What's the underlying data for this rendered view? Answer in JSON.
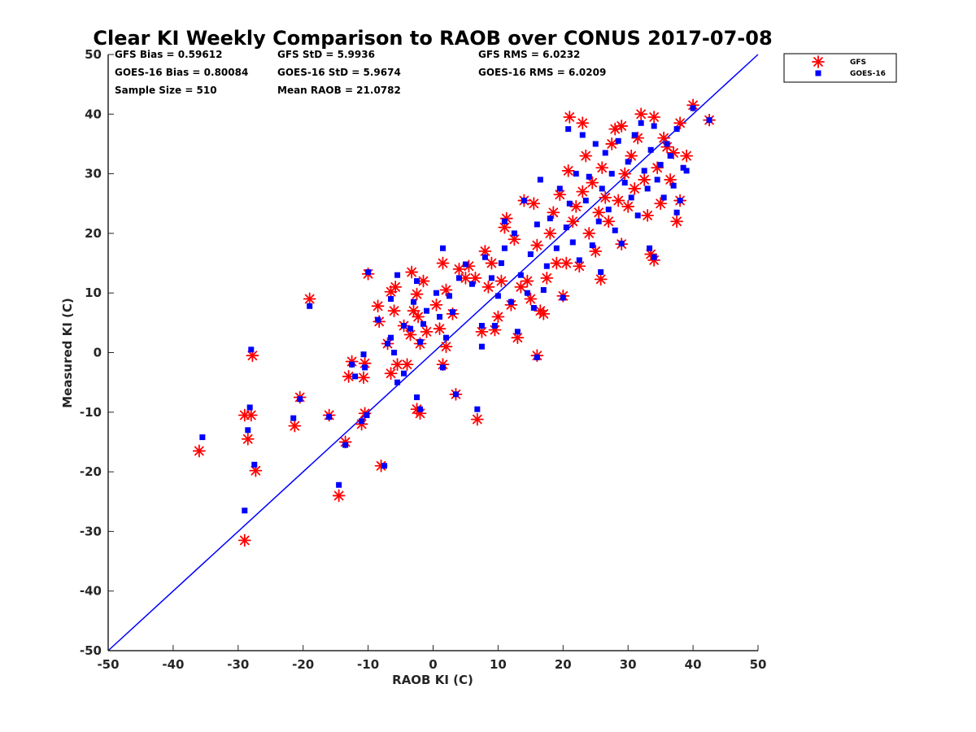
{
  "chart_data": {
    "type": "scatter",
    "title": "Clear KI Weekly Comparison to RAOB over CONUS 2017-07-08",
    "xlabel": "RAOB KI (C)",
    "ylabel": "Measured KI (C)",
    "xlim": [
      -50,
      50
    ],
    "ylim": [
      -50,
      50
    ],
    "xticks": [
      "-50",
      "-40",
      "-30",
      "-20",
      "-10",
      "0",
      "10",
      "20",
      "30",
      "40",
      "50"
    ],
    "yticks": [
      "-50",
      "-40",
      "-30",
      "-20",
      "-10",
      "0",
      "10",
      "20",
      "30",
      "40",
      "50"
    ],
    "stats": {
      "gfs_bias": "GFS Bias = 0.59612",
      "goes_bias": "GOES-16 Bias = 0.80084",
      "sample_size": "Sample Size = 510",
      "gfs_std": "GFS StD = 5.9936",
      "goes_std": "GOES-16 StD = 5.9674",
      "mean_raob": "Mean RAOB = 21.0782",
      "gfs_rms": "GFS RMS = 6.0232",
      "goes_rms": "GOES-16 RMS = 6.0209"
    },
    "legend": {
      "position": "top-right, outside axes",
      "entries": [
        "GFS",
        "GOES-16"
      ]
    },
    "reference_line": {
      "type": "one-to-one",
      "from": [
        -50,
        -50
      ],
      "to": [
        50,
        50
      ],
      "color": "#0000ff"
    },
    "series": [
      {
        "name": "GFS",
        "marker": "asterisk",
        "color": "#ff0000",
        "points": [
          [
            -36,
            -16.5
          ],
          [
            -29,
            -31.5
          ],
          [
            -29,
            -10.5
          ],
          [
            -28.5,
            -14.5
          ],
          [
            -28,
            -10.5
          ],
          [
            -27.8,
            -0.5
          ],
          [
            -27.3,
            -19.8
          ],
          [
            -21.3,
            -12.3
          ],
          [
            -20.5,
            -7.5
          ],
          [
            -19,
            9
          ],
          [
            -16,
            -10.5
          ],
          [
            -14.5,
            -24
          ],
          [
            -13.5,
            -15
          ],
          [
            -13,
            -4
          ],
          [
            -12.5,
            -1.5
          ],
          [
            -11,
            -12
          ],
          [
            -10.7,
            -4.2
          ],
          [
            -10.5,
            -1.8
          ],
          [
            -10.5,
            -10.2
          ],
          [
            -10,
            13.2
          ],
          [
            -8.5,
            7.8
          ],
          [
            -8.3,
            5.2
          ],
          [
            -8,
            -19
          ],
          [
            -7,
            1.5
          ],
          [
            -6.5,
            -3.5
          ],
          [
            -6.5,
            10.2
          ],
          [
            -6,
            7
          ],
          [
            -5.8,
            11
          ],
          [
            -5.5,
            -2
          ],
          [
            -4.5,
            4.5
          ],
          [
            -4,
            -2
          ],
          [
            -3.5,
            3
          ],
          [
            -3.3,
            13.5
          ],
          [
            -3,
            7
          ],
          [
            -2.5,
            9.8
          ],
          [
            -2.3,
            6
          ],
          [
            -2.5,
            -9.5
          ],
          [
            -2,
            1.5
          ],
          [
            -2,
            -10.2
          ],
          [
            -1.5,
            12
          ],
          [
            -1,
            3.5
          ],
          [
            0.5,
            8
          ],
          [
            1,
            4
          ],
          [
            1.5,
            -2
          ],
          [
            1.5,
            15
          ],
          [
            2,
            1
          ],
          [
            2,
            10.5
          ],
          [
            3,
            6.5
          ],
          [
            3.5,
            -7
          ],
          [
            4,
            14
          ],
          [
            5,
            12.5
          ],
          [
            5.5,
            14.5
          ],
          [
            6.5,
            12.5
          ],
          [
            6.8,
            -11.2
          ],
          [
            7.5,
            3.5
          ],
          [
            8,
            17
          ],
          [
            8.5,
            11
          ],
          [
            9,
            15
          ],
          [
            9.5,
            3.8
          ],
          [
            10,
            6
          ],
          [
            10.5,
            12
          ],
          [
            11,
            21
          ],
          [
            11.3,
            22.5
          ],
          [
            12,
            8
          ],
          [
            12.5,
            19
          ],
          [
            13,
            2.5
          ],
          [
            13.5,
            11
          ],
          [
            14,
            25.5
          ],
          [
            14.5,
            12
          ],
          [
            15,
            9
          ],
          [
            15.5,
            25
          ],
          [
            16,
            -0.5
          ],
          [
            16,
            18
          ],
          [
            16.5,
            7
          ],
          [
            17,
            6.5
          ],
          [
            17.5,
            12.5
          ],
          [
            18,
            20
          ],
          [
            18.5,
            23.5
          ],
          [
            19,
            15
          ],
          [
            19.5,
            26.5
          ],
          [
            20,
            9.5
          ],
          [
            20.5,
            15
          ],
          [
            20.8,
            30.5
          ],
          [
            21,
            39.5
          ],
          [
            21.5,
            22
          ],
          [
            22,
            24.5
          ],
          [
            22.5,
            14.5
          ],
          [
            23,
            38.5
          ],
          [
            23,
            27
          ],
          [
            23.5,
            33
          ],
          [
            24,
            20
          ],
          [
            24.5,
            28.5
          ],
          [
            25,
            17
          ],
          [
            25.5,
            23.5
          ],
          [
            25.8,
            12.3
          ],
          [
            26,
            31
          ],
          [
            26.5,
            26
          ],
          [
            27,
            22
          ],
          [
            27.5,
            35
          ],
          [
            28,
            37.5
          ],
          [
            28.5,
            25.5
          ],
          [
            29,
            38
          ],
          [
            29,
            18.2
          ],
          [
            29.5,
            30
          ],
          [
            30,
            24.5
          ],
          [
            30.5,
            33
          ],
          [
            31,
            27.5
          ],
          [
            31.5,
            36
          ],
          [
            32,
            40
          ],
          [
            32.5,
            29
          ],
          [
            33,
            23
          ],
          [
            33.5,
            16.5
          ],
          [
            34,
            39.5
          ],
          [
            34,
            15.5
          ],
          [
            34.5,
            31
          ],
          [
            35,
            25
          ],
          [
            35.5,
            36
          ],
          [
            36,
            34.5
          ],
          [
            36.5,
            29
          ],
          [
            37,
            33.5
          ],
          [
            37.5,
            22
          ],
          [
            38,
            38.5
          ],
          [
            38,
            25.5
          ],
          [
            39,
            33
          ],
          [
            40,
            41.5
          ],
          [
            42.5,
            39
          ]
        ]
      },
      {
        "name": "GOES-16",
        "marker": "square",
        "color": "#0000ff",
        "points": [
          [
            -35.5,
            -14.2
          ],
          [
            -29,
            -26.5
          ],
          [
            -28.5,
            -13
          ],
          [
            -28.2,
            -9.2
          ],
          [
            -28,
            0.5
          ],
          [
            -27.5,
            -18.8
          ],
          [
            -21.5,
            -11
          ],
          [
            -20.5,
            -7.8
          ],
          [
            -19,
            7.8
          ],
          [
            -16,
            -10.8
          ],
          [
            -14.5,
            -22.2
          ],
          [
            -13.5,
            -15.5
          ],
          [
            -12.5,
            -2
          ],
          [
            -12,
            -4
          ],
          [
            -11,
            -11.5
          ],
          [
            -10.7,
            -0.3
          ],
          [
            -10.5,
            -2.5
          ],
          [
            -10.2,
            -10.5
          ],
          [
            -10,
            13.5
          ],
          [
            -8.5,
            5.5
          ],
          [
            -7.5,
            -19
          ],
          [
            -7,
            1.5
          ],
          [
            -6.5,
            9
          ],
          [
            -6.5,
            2.5
          ],
          [
            -6,
            0
          ],
          [
            -5.5,
            13
          ],
          [
            -5.5,
            -5
          ],
          [
            -4.5,
            4.5
          ],
          [
            -4.5,
            -3.5
          ],
          [
            -3.5,
            4
          ],
          [
            -3,
            8.5
          ],
          [
            -2.5,
            12
          ],
          [
            -2.5,
            -7.5
          ],
          [
            -2,
            1.8
          ],
          [
            -2,
            -9.5
          ],
          [
            -1.5,
            4.8
          ],
          [
            -1,
            7
          ],
          [
            0.5,
            10
          ],
          [
            1,
            6
          ],
          [
            1.5,
            -2.5
          ],
          [
            1.5,
            17.5
          ],
          [
            2,
            2.5
          ],
          [
            2.5,
            9.5
          ],
          [
            3,
            6.8
          ],
          [
            3.5,
            -7
          ],
          [
            4,
            12.5
          ],
          [
            5,
            14.8
          ],
          [
            6,
            11.5
          ],
          [
            6.8,
            -9.5
          ],
          [
            7.5,
            1
          ],
          [
            7.5,
            4.5
          ],
          [
            8,
            16
          ],
          [
            9,
            12.5
          ],
          [
            9.5,
            4.5
          ],
          [
            10,
            9.5
          ],
          [
            10.5,
            15
          ],
          [
            11,
            17.5
          ],
          [
            11,
            22
          ],
          [
            12,
            8.5
          ],
          [
            12.5,
            20
          ],
          [
            13,
            3.5
          ],
          [
            13.5,
            13
          ],
          [
            14,
            25.5
          ],
          [
            14.5,
            10
          ],
          [
            15,
            16.5
          ],
          [
            15.5,
            7.5
          ],
          [
            16,
            21.5
          ],
          [
            16,
            -0.8
          ],
          [
            16.5,
            29
          ],
          [
            17,
            10.5
          ],
          [
            17.5,
            14.5
          ],
          [
            18,
            22.5
          ],
          [
            19,
            17.5
          ],
          [
            19.5,
            27.5
          ],
          [
            20,
            9.2
          ],
          [
            20.5,
            21
          ],
          [
            20.8,
            37.5
          ],
          [
            21,
            25
          ],
          [
            21.5,
            18.5
          ],
          [
            22,
            30
          ],
          [
            22.5,
            15.5
          ],
          [
            23,
            36.5
          ],
          [
            23.5,
            25.5
          ],
          [
            24,
            29.5
          ],
          [
            24.5,
            18
          ],
          [
            25,
            35
          ],
          [
            25.5,
            22
          ],
          [
            25.8,
            13.5
          ],
          [
            26,
            27.5
          ],
          [
            26.5,
            33.5
          ],
          [
            27,
            24
          ],
          [
            27.5,
            30
          ],
          [
            28,
            20.5
          ],
          [
            28.5,
            35.5
          ],
          [
            29,
            18.3
          ],
          [
            29.5,
            28.5
          ],
          [
            30,
            32
          ],
          [
            30.5,
            26
          ],
          [
            31,
            36.5
          ],
          [
            31.5,
            23
          ],
          [
            32,
            38.5
          ],
          [
            32.5,
            30.5
          ],
          [
            33,
            27.5
          ],
          [
            33.3,
            17.5
          ],
          [
            33.5,
            34
          ],
          [
            34,
            16
          ],
          [
            34,
            38
          ],
          [
            34.5,
            29
          ],
          [
            35,
            31.5
          ],
          [
            35.5,
            26
          ],
          [
            36,
            35
          ],
          [
            36.5,
            33
          ],
          [
            37,
            28
          ],
          [
            37.5,
            23.5
          ],
          [
            37.5,
            37.5
          ],
          [
            38,
            25.5
          ],
          [
            38.5,
            31
          ],
          [
            39,
            30.5
          ],
          [
            40,
            41
          ],
          [
            42.5,
            39
          ]
        ]
      }
    ]
  }
}
